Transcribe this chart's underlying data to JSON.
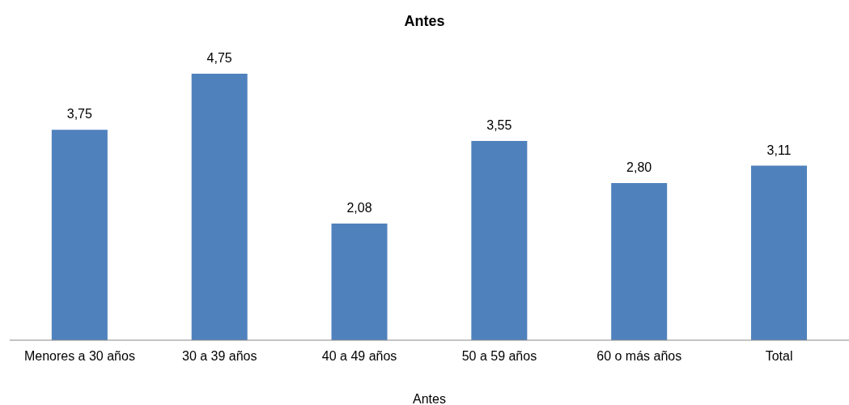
{
  "chart_data": {
    "type": "bar",
    "title": "Antes",
    "xlabel": "Antes",
    "categories": [
      "Menores a 30 años",
      "30 a 39 años",
      "40 a 49 años",
      "50 a 59 años",
      "60 o más años",
      "Total"
    ],
    "values": [
      3.75,
      4.75,
      2.08,
      3.55,
      2.8,
      3.11
    ],
    "value_labels": [
      "3,75",
      "4,75",
      "2,08",
      "3,55",
      "2,80",
      "3,11"
    ],
    "color": "#4f81bd"
  }
}
